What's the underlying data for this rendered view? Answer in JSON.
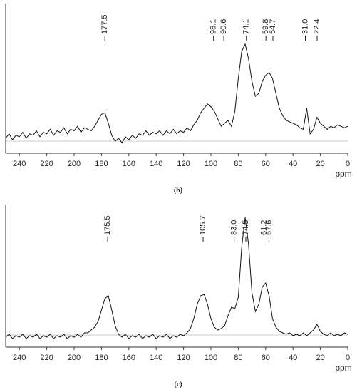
{
  "chart_data": [
    {
      "type": "line",
      "caption": "(b)",
      "xlabel": "ppm",
      "color": "#111111",
      "xlim": [
        250,
        0
      ],
      "ylim": [
        0,
        100
      ],
      "xticks": [
        240,
        220,
        200,
        180,
        160,
        140,
        120,
        100,
        80,
        60,
        40,
        20,
        0
      ],
      "peaks": [
        177.5,
        98.1,
        90.6,
        74.1,
        59.8,
        54.7,
        {
          "value": 31,
          "label": "31.0"
        },
        22.4
      ],
      "x": [
        250,
        247.5,
        245,
        242.5,
        240,
        237.5,
        235,
        232.5,
        230,
        227.5,
        225,
        222.5,
        220,
        217.5,
        215,
        212.5,
        210,
        207.5,
        205,
        202.5,
        200,
        197.5,
        195,
        192.5,
        190,
        187.5,
        185,
        182.5,
        180,
        177.5,
        175,
        172.5,
        170,
        167.5,
        165,
        162.5,
        160,
        157.5,
        155,
        152.5,
        150,
        147.5,
        145,
        142.5,
        140,
        137.5,
        135,
        132.5,
        130,
        127.5,
        125,
        122.5,
        120,
        117.5,
        115,
        112.5,
        110,
        107.5,
        105,
        102.5,
        100,
        97.5,
        95,
        92.5,
        90,
        87.5,
        85,
        82.5,
        80,
        77.5,
        75,
        72.5,
        70,
        67.5,
        65,
        62.5,
        60,
        57.5,
        55,
        52.5,
        50,
        47.5,
        45,
        42.5,
        40,
        37.5,
        35,
        32.5,
        30,
        27.5,
        25,
        22.5,
        20,
        17.5,
        15,
        12.5,
        10,
        7.5,
        5,
        2.5,
        0
      ],
      "values": [
        10,
        13,
        9,
        12,
        11,
        14,
        10,
        13,
        12,
        15,
        11,
        14,
        13,
        16,
        12,
        15,
        14,
        17,
        13,
        16,
        15,
        18,
        14,
        17,
        16,
        15,
        18,
        22,
        26,
        27,
        20,
        12,
        8,
        10,
        7,
        11,
        9,
        12,
        10,
        13,
        12,
        15,
        12,
        14,
        13,
        15,
        12,
        15,
        13,
        16,
        13,
        15,
        14,
        17,
        15,
        19,
        22,
        27,
        30,
        33,
        31,
        28,
        23,
        18,
        20,
        22,
        18,
        28,
        50,
        68,
        73,
        63,
        48,
        38,
        40,
        48,
        52,
        54,
        50,
        40,
        30,
        25,
        22,
        21,
        20,
        19,
        17,
        16,
        30,
        13,
        16,
        24,
        20,
        18,
        16,
        18,
        17,
        19,
        18,
        17,
        18
      ]
    },
    {
      "type": "line",
      "caption": "(c)",
      "xlabel": "ppm",
      "color": "#111111",
      "xlim": [
        250,
        0
      ],
      "ylim": [
        0,
        100
      ],
      "xticks": [
        240,
        220,
        200,
        180,
        160,
        140,
        120,
        100,
        80,
        60,
        40,
        20,
        0
      ],
      "peaks": [
        175.5,
        105.7,
        {
          "value": 83,
          "label": "83.0"
        },
        74.5,
        61.2,
        57.6
      ],
      "x": [
        250,
        247.5,
        245,
        242.5,
        240,
        237.5,
        235,
        232.5,
        230,
        227.5,
        225,
        222.5,
        220,
        217.5,
        215,
        212.5,
        210,
        207.5,
        205,
        202.5,
        200,
        197.5,
        195,
        192.5,
        190,
        187.5,
        185,
        182.5,
        180,
        177.5,
        175,
        172.5,
        170,
        167.5,
        165,
        162.5,
        160,
        157.5,
        155,
        152.5,
        150,
        147.5,
        145,
        142.5,
        140,
        137.5,
        135,
        132.5,
        130,
        127.5,
        125,
        122.5,
        120,
        117.5,
        115,
        112.5,
        110,
        107.5,
        105,
        102.5,
        100,
        97.5,
        95,
        92.5,
        90,
        87.5,
        85,
        82.5,
        80,
        77.5,
        75,
        72.5,
        70,
        67.5,
        65,
        62.5,
        60,
        57.5,
        55,
        52.5,
        50,
        47.5,
        45,
        42.5,
        40,
        37.5,
        35,
        32.5,
        30,
        27.5,
        25,
        22.5,
        20,
        17.5,
        15,
        12.5,
        10,
        7.5,
        5,
        2.5,
        0
      ],
      "values": [
        7,
        9,
        6,
        8,
        7,
        9,
        6,
        8,
        7,
        9,
        6,
        8,
        7,
        9,
        6,
        8,
        7,
        9,
        6,
        8,
        7,
        9,
        7,
        10,
        10,
        12,
        14,
        18,
        26,
        34,
        36,
        26,
        15,
        9,
        7,
        9,
        6,
        8,
        7,
        9,
        6,
        8,
        7,
        9,
        6,
        8,
        7,
        9,
        6,
        8,
        7,
        9,
        8,
        10,
        13,
        20,
        30,
        36,
        37,
        30,
        20,
        14,
        12,
        13,
        15,
        22,
        28,
        27,
        35,
        70,
        91,
        72,
        38,
        25,
        30,
        42,
        45,
        36,
        20,
        14,
        11,
        10,
        9,
        10,
        8,
        9,
        8,
        10,
        8,
        10,
        12,
        16,
        11,
        9,
        8,
        10,
        8,
        9,
        8,
        10,
        9
      ]
    }
  ]
}
